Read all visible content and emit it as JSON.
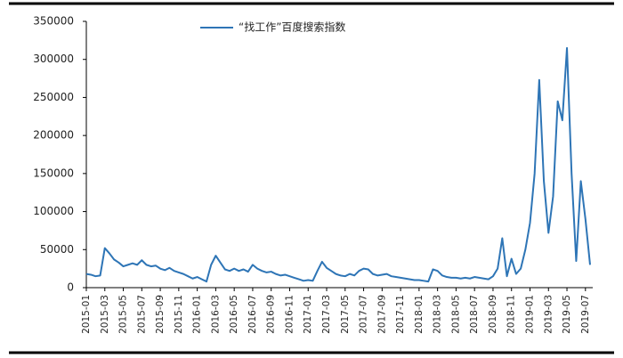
{
  "chart_data": {
    "type": "line",
    "categories": [
      "2015-01",
      null,
      null,
      null,
      "2015-03",
      null,
      null,
      null,
      "2015-05",
      null,
      null,
      null,
      "2015-07",
      null,
      null,
      null,
      "2015-09",
      null,
      null,
      null,
      "2015-11",
      null,
      null,
      null,
      "2016-01",
      null,
      null,
      null,
      "2016-03",
      null,
      null,
      null,
      "2016-05",
      null,
      null,
      null,
      "2016-07",
      null,
      null,
      null,
      "2016-09",
      null,
      null,
      null,
      "2016-11",
      null,
      null,
      null,
      "2017-01",
      null,
      null,
      null,
      "2017-03",
      null,
      null,
      null,
      "2017-05",
      null,
      null,
      null,
      "2017-07",
      null,
      null,
      null,
      "2017-09",
      null,
      null,
      null,
      "2017-11",
      null,
      null,
      null,
      "2018-01",
      null,
      null,
      null,
      "2018-03",
      null,
      null,
      null,
      "2018-05",
      null,
      null,
      null,
      "2018-07",
      null,
      null,
      null,
      "2018-09",
      null,
      null,
      null,
      "2018-11",
      null,
      null,
      null,
      "2019-01",
      null,
      null,
      null,
      "2019-03",
      null,
      null,
      null,
      "2019-05",
      null,
      null,
      null,
      "2019-07",
      null
    ],
    "series": [
      {
        "name": "“找工作”百度搜索指数",
        "color": "#2e75b6",
        "values": [
          18000,
          17000,
          15000,
          16000,
          52000,
          45000,
          37000,
          33000,
          28000,
          30000,
          32000,
          30000,
          36000,
          30000,
          28000,
          29000,
          25000,
          23000,
          26000,
          22000,
          20000,
          18000,
          15000,
          12000,
          14000,
          11000,
          8000,
          30000,
          42000,
          33000,
          24000,
          22000,
          25000,
          22000,
          24000,
          21000,
          30000,
          25000,
          22000,
          20000,
          21000,
          18000,
          16000,
          17000,
          15000,
          13000,
          11000,
          9000,
          10000,
          9000,
          22000,
          34000,
          26000,
          22000,
          18000,
          16000,
          15000,
          18000,
          16000,
          22000,
          25000,
          24000,
          18000,
          16000,
          17000,
          18000,
          15000,
          14000,
          13000,
          12000,
          11000,
          10000,
          10000,
          9000,
          8000,
          24000,
          22000,
          16000,
          14000,
          13000,
          13000,
          12000,
          13000,
          12000,
          14000,
          13000,
          12000,
          11000,
          15000,
          25000,
          65000,
          15000,
          38000,
          18000,
          25000,
          50000,
          85000,
          150000,
          273000,
          140000,
          72000,
          120000,
          245000,
          220000,
          315000,
          150000,
          35000,
          140000,
          90000,
          30000
        ]
      }
    ],
    "ylim": [
      0,
      350000
    ],
    "yticks": [
      0,
      50000,
      100000,
      150000,
      200000,
      250000,
      300000,
      350000
    ]
  }
}
